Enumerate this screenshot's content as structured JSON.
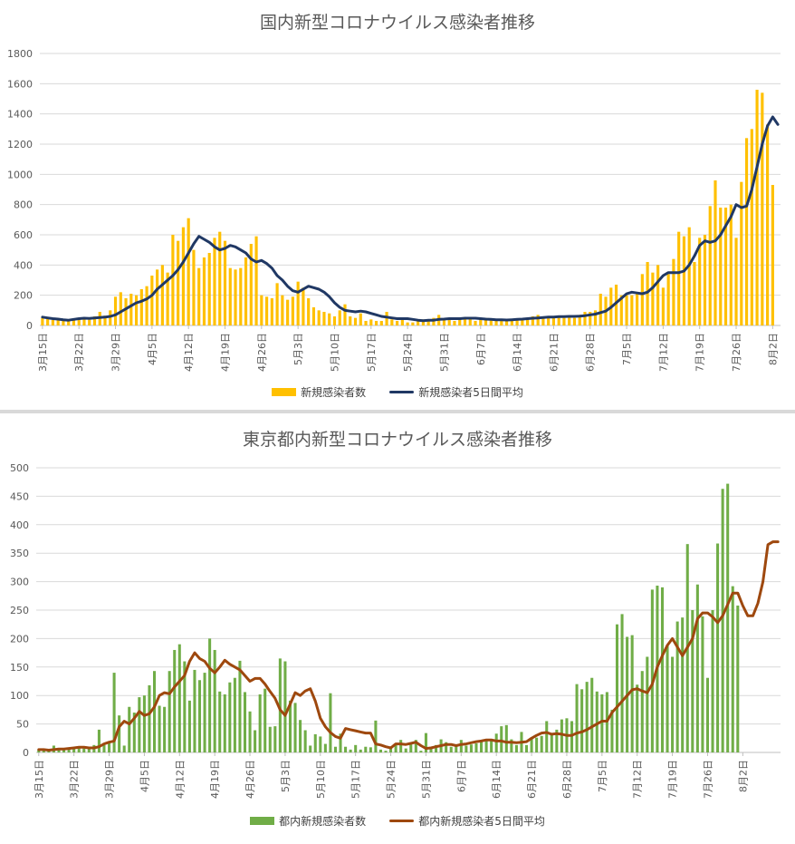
{
  "colors": {
    "national_bar": "#ffc000",
    "national_line": "#203864",
    "tokyo_bar": "#70ad47",
    "tokyo_line": "#9e480e",
    "grid": "#d9d9d9",
    "axis": "#bfbfbf"
  },
  "chart_data": [
    {
      "type": "bar",
      "title": "国内新型コロナウイルス感染者推移",
      "xlabel": "",
      "ylabel": "",
      "ylim": [
        0,
        1800
      ],
      "yticks": [
        0,
        200,
        400,
        600,
        800,
        1000,
        1200,
        1400,
        1600,
        1800
      ],
      "grid": true,
      "legend_position": "bottom",
      "x_start": "3月15日",
      "x_end": "8月2日",
      "xtick_labels": [
        "3月15日",
        "3月22日",
        "3月29日",
        "4月5日",
        "4月12日",
        "4月19日",
        "4月26日",
        "5月3日",
        "5月10日",
        "5月17日",
        "5月24日",
        "5月31日",
        "6月7日",
        "6月14日",
        "6月21日",
        "6月28日",
        "7月5日",
        "7月12日",
        "7月19日",
        "7月26日",
        "8月2日"
      ],
      "series": [
        {
          "name": "新規感染者数",
          "type": "bar",
          "values": [
            50,
            43,
            36,
            40,
            34,
            30,
            42,
            39,
            44,
            38,
            60,
            90,
            65,
            100,
            190,
            220,
            180,
            210,
            200,
            240,
            260,
            330,
            370,
            400,
            350,
            600,
            560,
            650,
            710,
            500,
            380,
            450,
            480,
            580,
            620,
            560,
            380,
            370,
            380,
            450,
            540,
            590,
            200,
            190,
            180,
            280,
            200,
            170,
            190,
            290,
            250,
            180,
            120,
            100,
            90,
            80,
            60,
            100,
            140,
            60,
            50,
            80,
            30,
            40,
            30,
            30,
            90,
            40,
            30,
            40,
            20,
            20,
            30,
            40,
            30,
            50,
            70,
            40,
            40,
            30,
            40,
            40,
            40,
            30,
            40,
            50,
            40,
            30,
            30,
            30,
            40,
            40,
            40,
            50,
            60,
            70,
            60,
            60,
            60,
            60,
            50,
            60,
            50,
            70,
            90,
            90,
            100,
            210,
            190,
            250,
            270,
            200,
            200,
            200,
            220,
            340,
            420,
            350,
            400,
            250,
            340,
            440,
            620,
            590,
            650,
            420,
            580,
            600,
            790,
            960,
            780,
            780,
            800,
            580,
            950,
            1240,
            1300,
            1560,
            1540,
            1330,
            930
          ],
          "color": "#ffc000"
        },
        {
          "name": "新規感染者5日間平均",
          "type": "line",
          "values": [
            55,
            50,
            45,
            42,
            38,
            35,
            40,
            45,
            48,
            47,
            50,
            52,
            55,
            60,
            70,
            90,
            110,
            130,
            150,
            160,
            175,
            200,
            240,
            270,
            300,
            330,
            370,
            420,
            480,
            540,
            590,
            570,
            550,
            520,
            500,
            510,
            530,
            520,
            500,
            480,
            440,
            420,
            430,
            410,
            380,
            330,
            300,
            260,
            230,
            220,
            240,
            260,
            250,
            240,
            220,
            190,
            150,
            120,
            100,
            95,
            90,
            95,
            90,
            80,
            70,
            60,
            55,
            50,
            45,
            45,
            45,
            40,
            35,
            32,
            35,
            35,
            40,
            42,
            45,
            45,
            45,
            48,
            48,
            48,
            45,
            42,
            40,
            38,
            37,
            36,
            38,
            40,
            42,
            45,
            48,
            50,
            52,
            55,
            55,
            58,
            58,
            60,
            60,
            62,
            65,
            70,
            75,
            85,
            95,
            120,
            150,
            180,
            210,
            220,
            215,
            210,
            220,
            250,
            290,
            330,
            350,
            350,
            350,
            360,
            400,
            460,
            530,
            560,
            550,
            560,
            600,
            660,
            720,
            800,
            780,
            790,
            900,
            1050,
            1200,
            1320,
            1380,
            1330
          ],
          "color": "#203864"
        }
      ]
    },
    {
      "type": "bar",
      "title": "東京都内新型コロナウイルス感染者推移",
      "xlabel": "",
      "ylabel": "",
      "ylim": [
        0,
        500
      ],
      "yticks": [
        0,
        50,
        100,
        150,
        200,
        250,
        300,
        350,
        400,
        450,
        500
      ],
      "grid": true,
      "legend_position": "bottom",
      "x_start": "3月15日",
      "x_end": "8月2日",
      "xtick_labels": [
        "3月15日",
        "3月22日",
        "3月29日",
        "4月5日",
        "4月12日",
        "4月19日",
        "4月26日",
        "5月3日",
        "5月10日",
        "5月17日",
        "5月24日",
        "5月31日",
        "6月7日",
        "6月14日",
        "6月21日",
        "6月28日",
        "7月5日",
        "7月12日",
        "7月19日",
        "7月26日",
        "8月2日"
      ],
      "series": [
        {
          "name": "都内新規感染者数",
          "type": "bar",
          "values": [
            5,
            4,
            3,
            12,
            7,
            5,
            7,
            8,
            10,
            7,
            8,
            13,
            40,
            13,
            17,
            140,
            65,
            12,
            80,
            70,
            97,
            100,
            118,
            143,
            82,
            80,
            143,
            180,
            190,
            160,
            91,
            145,
            127,
            140,
            200,
            180,
            107,
            102,
            123,
            131,
            161,
            106,
            72,
            39,
            102,
            112,
            45,
            46,
            165,
            160,
            91,
            87,
            57,
            39,
            12,
            32,
            28,
            15,
            104,
            10,
            33,
            10,
            5,
            13,
            5,
            10,
            9,
            56,
            5,
            3,
            10,
            15,
            22,
            7,
            14,
            22,
            3,
            34,
            8,
            13,
            23,
            18,
            10,
            14,
            22,
            12,
            14,
            16,
            20,
            23,
            22,
            33,
            46,
            48,
            23,
            13,
            36,
            13,
            25,
            26,
            29,
            55,
            31,
            40,
            58,
            60,
            55,
            120,
            111,
            124,
            131,
            107,
            102,
            106,
            75,
            225,
            243,
            203,
            206,
            119,
            143,
            168,
            286,
            293,
            290,
            188,
            168,
            230,
            237,
            366,
            250,
            295,
            239,
            131,
            250,
            367,
            463,
            472,
            292,
            258
          ],
          "color": "#70ad47"
        },
        {
          "name": "都内新規感染者5日間平均",
          "type": "line",
          "values": [
            5,
            5,
            4,
            5,
            6,
            6,
            7,
            8,
            9,
            9,
            8,
            8,
            10,
            15,
            18,
            20,
            45,
            55,
            50,
            60,
            72,
            65,
            68,
            80,
            100,
            105,
            103,
            115,
            125,
            135,
            160,
            175,
            165,
            160,
            148,
            140,
            150,
            162,
            155,
            150,
            145,
            135,
            125,
            130,
            130,
            120,
            107,
            95,
            75,
            65,
            85,
            105,
            100,
            108,
            112,
            90,
            60,
            45,
            35,
            28,
            25,
            42,
            40,
            38,
            36,
            34,
            34,
            15,
            13,
            10,
            8,
            15,
            15,
            14,
            16,
            18,
            12,
            7,
            8,
            10,
            12,
            14,
            14,
            12,
            14,
            15,
            17,
            19,
            20,
            22,
            22,
            20,
            20,
            18,
            18,
            17,
            18,
            19,
            25,
            30,
            34,
            35,
            32,
            33,
            32,
            30,
            30,
            34,
            36,
            40,
            45,
            50,
            55,
            55,
            70,
            80,
            90,
            100,
            110,
            112,
            108,
            105,
            120,
            150,
            170,
            188,
            200,
            185,
            170,
            185,
            200,
            235,
            245,
            245,
            238,
            228,
            240,
            260,
            280,
            280,
            258,
            240,
            240,
            262,
            300,
            365,
            370,
            370
          ],
          "color": "#9e480e"
        }
      ]
    }
  ]
}
